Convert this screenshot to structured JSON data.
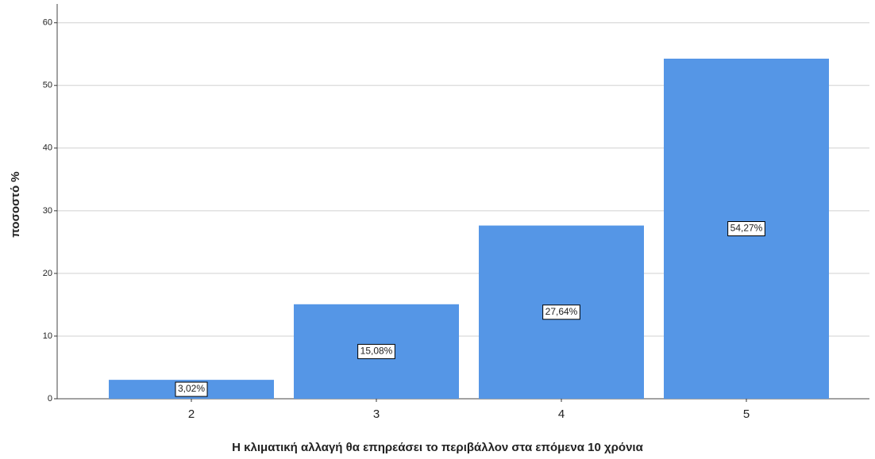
{
  "chart_data": {
    "type": "bar",
    "x_label": "Η κλιματική αλλαγή θα επηρεάσει το περιβάλλον στα επόμενα 10 χρόνια",
    "y_label": "ποσοστό %",
    "categories": [
      "2",
      "3",
      "4",
      "5"
    ],
    "values": [
      3.02,
      15.08,
      27.64,
      54.27
    ],
    "value_labels": [
      "3,02%",
      "15,08%",
      "27,64%",
      "54,27%"
    ],
    "color": "#5596e6",
    "ylim": [
      0,
      63
    ],
    "yticks": [
      0,
      10,
      20,
      30,
      40,
      50,
      60
    ],
    "grid": true
  }
}
